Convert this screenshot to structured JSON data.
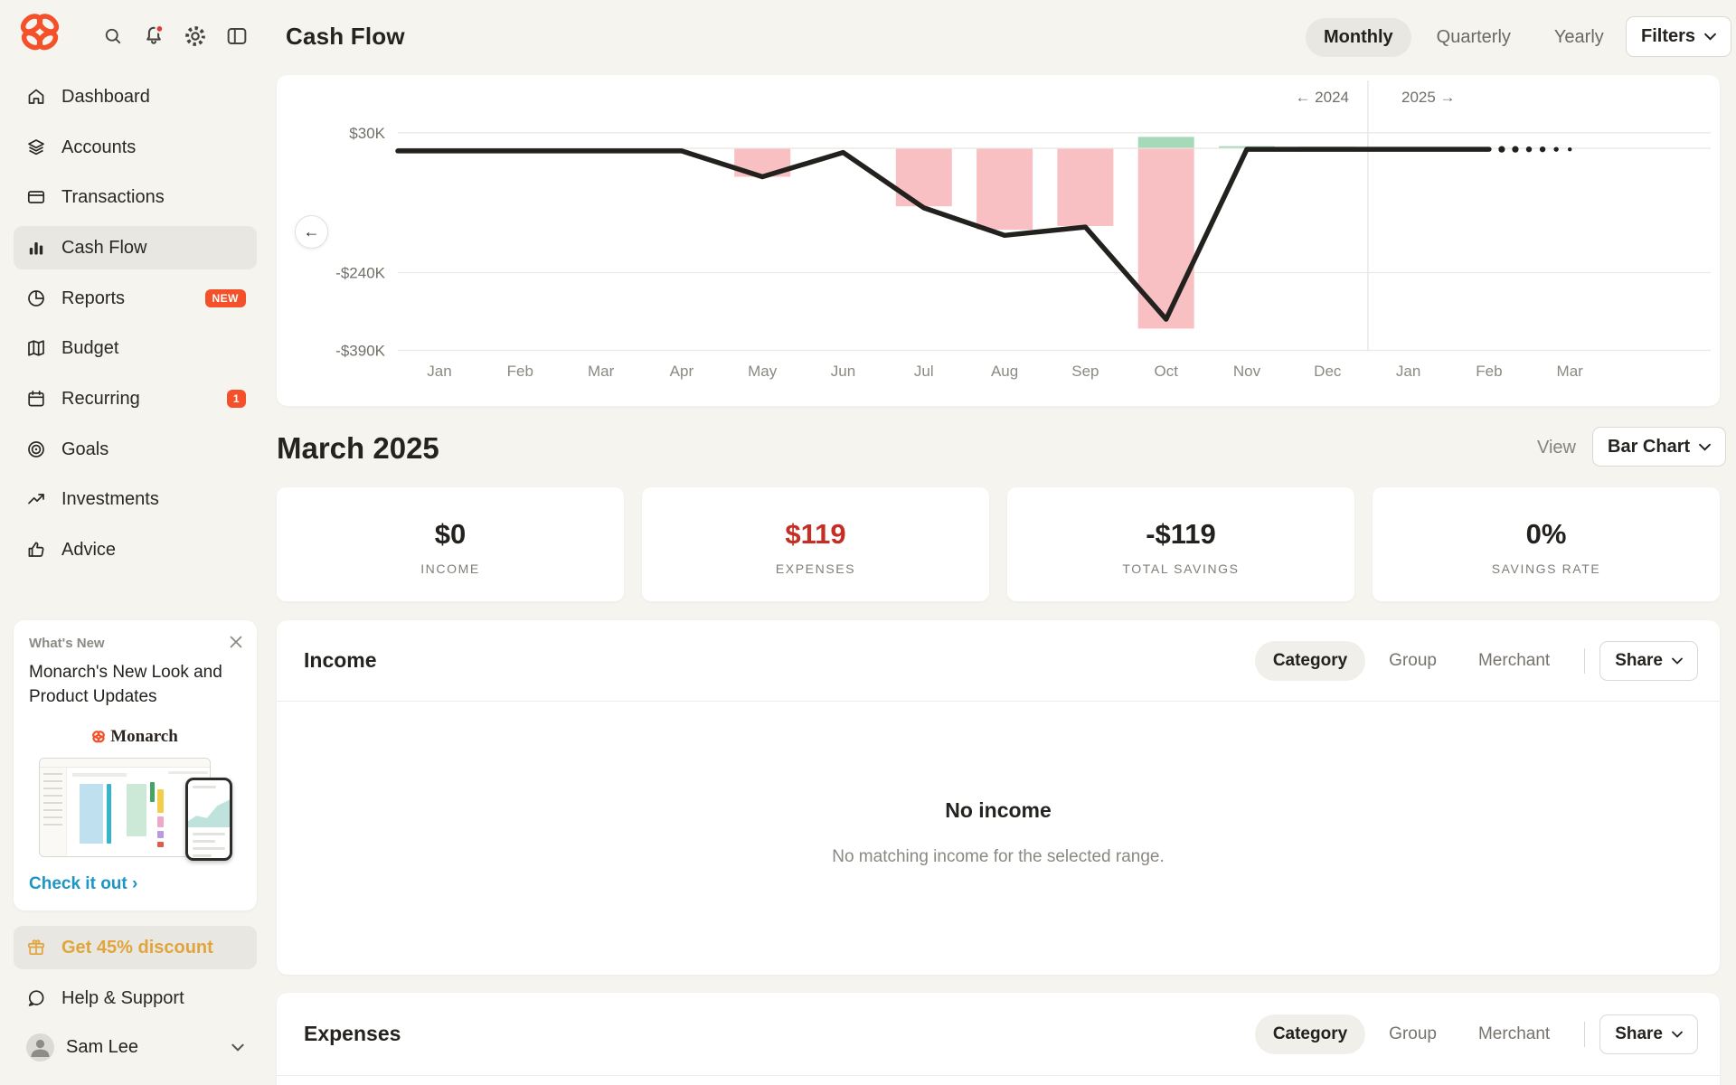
{
  "topbar": {
    "title": "Cash Flow",
    "icons": {
      "logo": "monarch-butterfly-logo",
      "search": "search-icon",
      "notifications": "bell-icon-with-red-dot",
      "settings": "gear-icon",
      "panel": "sidebar-toggle-icon"
    },
    "tabs": [
      {
        "label": "Monthly",
        "active": true
      },
      {
        "label": "Quarterly",
        "active": false
      },
      {
        "label": "Yearly",
        "active": false
      }
    ],
    "filters": {
      "label": "Filters"
    }
  },
  "sidebar": {
    "items": [
      {
        "label": "Dashboard",
        "icon": "home-icon"
      },
      {
        "label": "Accounts",
        "icon": "layers-icon"
      },
      {
        "label": "Transactions",
        "icon": "credit-card-icon"
      },
      {
        "label": "Cash Flow",
        "icon": "bar-chart-icon",
        "active": true
      },
      {
        "label": "Reports",
        "icon": "pie-chart-icon",
        "badge": "NEW"
      },
      {
        "label": "Budget",
        "icon": "map-icon"
      },
      {
        "label": "Recurring",
        "icon": "calendar-icon",
        "badge": "1"
      },
      {
        "label": "Goals",
        "icon": "target-icon"
      },
      {
        "label": "Investments",
        "icon": "trend-up-icon"
      },
      {
        "label": "Advice",
        "icon": "thumbs-up-icon"
      }
    ],
    "whats_new": {
      "header": "What's New",
      "title": "Monarch's New Look and Product Updates",
      "brand": "Monarch",
      "cta": "Check it out ›"
    },
    "discount": {
      "label": "Get 45% discount",
      "color": "#E0A53C"
    },
    "help": {
      "label": "Help & Support"
    },
    "user": {
      "name": "Sam Lee"
    }
  },
  "chart_data": {
    "type": "bar",
    "subtype": "bar-with-line-combo",
    "title": "Cash flow by month: monthly savings bars with running-total line",
    "categories": [
      "Jan",
      "Feb",
      "Mar",
      "Apr",
      "May",
      "Jun",
      "Jul",
      "Aug",
      "Sep",
      "Oct",
      "Nov",
      "Dec",
      "Jan",
      "Feb",
      "Mar"
    ],
    "y_axis": {
      "unit": "USD thousands",
      "ticks": [
        {
          "label": "$30K",
          "value": 30
        },
        {
          "label": "-$240K",
          "value": -240
        },
        {
          "label": "-$390K",
          "value": -390
        }
      ],
      "zero_line": true,
      "range": [
        -400,
        45
      ]
    },
    "year_nav": {
      "prev": "← 2024",
      "next": "2025 →",
      "divider_between_index": 11.5
    },
    "bars": [
      {
        "index": 4,
        "month": "May",
        "value": -55,
        "positive_value": 0
      },
      {
        "index": 6,
        "month": "Jul",
        "value": -112,
        "positive_value": 0
      },
      {
        "index": 7,
        "month": "Aug",
        "value": -157,
        "positive_value": 0
      },
      {
        "index": 8,
        "month": "Sep",
        "value": -150,
        "positive_value": 0
      },
      {
        "index": 9,
        "month": "Oct",
        "value": -348,
        "positive_value": 22
      },
      {
        "index": 10,
        "month": "Nov",
        "value": 0,
        "positive_value": 4
      },
      {
        "index": 11,
        "month": "Dec",
        "value": 0,
        "positive_value": 3
      }
    ],
    "line": {
      "name": "running-total",
      "values_k": [
        -5,
        -5,
        -5,
        -5,
        -55,
        -8,
        -115,
        -168,
        -152,
        -330,
        -2,
        -2,
        -2,
        -2
      ],
      "projection": {
        "style": "dotted",
        "value_k": -2,
        "to_month": "Mar"
      }
    },
    "colors": {
      "bar_negative": "#F9C0C3",
      "bar_positive": "#A6D9BA",
      "line": "#23211E",
      "grid": "#ECEAE4",
      "zero_grid": "#E7E5DF"
    },
    "legend": false
  },
  "period": {
    "title": "March 2025",
    "view_label": "View",
    "view_value": "Bar Chart"
  },
  "summary": {
    "cards": [
      {
        "value": "$0",
        "label": "INCOME",
        "tone": "default"
      },
      {
        "value": "$119",
        "label": "EXPENSES",
        "tone": "negative-red"
      },
      {
        "value": "-$119",
        "label": "TOTAL SAVINGS",
        "tone": "default"
      },
      {
        "value": "0%",
        "label": "SAVINGS RATE",
        "tone": "default"
      }
    ]
  },
  "income_section": {
    "title": "Income",
    "tabs": [
      {
        "label": "Category",
        "active": true
      },
      {
        "label": "Group",
        "active": false
      },
      {
        "label": "Merchant",
        "active": false
      }
    ],
    "share_label": "Share",
    "empty_title": "No income",
    "empty_subtitle": "No matching income for the selected range."
  },
  "expenses_section": {
    "title": "Expenses",
    "tabs": [
      {
        "label": "Category",
        "active": true
      },
      {
        "label": "Group",
        "active": false
      },
      {
        "label": "Merchant",
        "active": false
      }
    ],
    "share_label": "Share"
  }
}
